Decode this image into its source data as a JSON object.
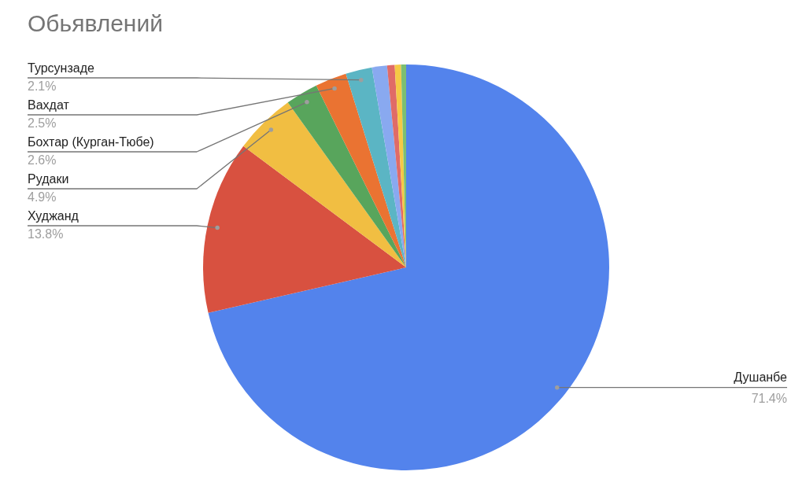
{
  "chart_data": {
    "type": "pie",
    "title": "Обьявлений",
    "categories": [
      "Душанбе",
      "Худжанд",
      "Рудаки",
      "Бохтар (Курган-Тюбе)",
      "Вахдат",
      "Турсунзаде",
      null,
      null,
      null,
      null
    ],
    "values": [
      71.4,
      13.8,
      4.9,
      2.6,
      2.5,
      2.1,
      1.2,
      0.6,
      0.5,
      0.4
    ],
    "value_labels": [
      "71.4%",
      "13.8%",
      "4.9%",
      "2.6%",
      "2.5%",
      "2.1%",
      null,
      null,
      null,
      null
    ],
    "colors": [
      "#5383ec",
      "#d85140",
      "#f1be42",
      "#58a55c",
      "#ea7332",
      "#5bb5c4",
      "#89a9f0",
      "#e06b67",
      "#f5c945",
      "#7cbf72"
    ]
  }
}
